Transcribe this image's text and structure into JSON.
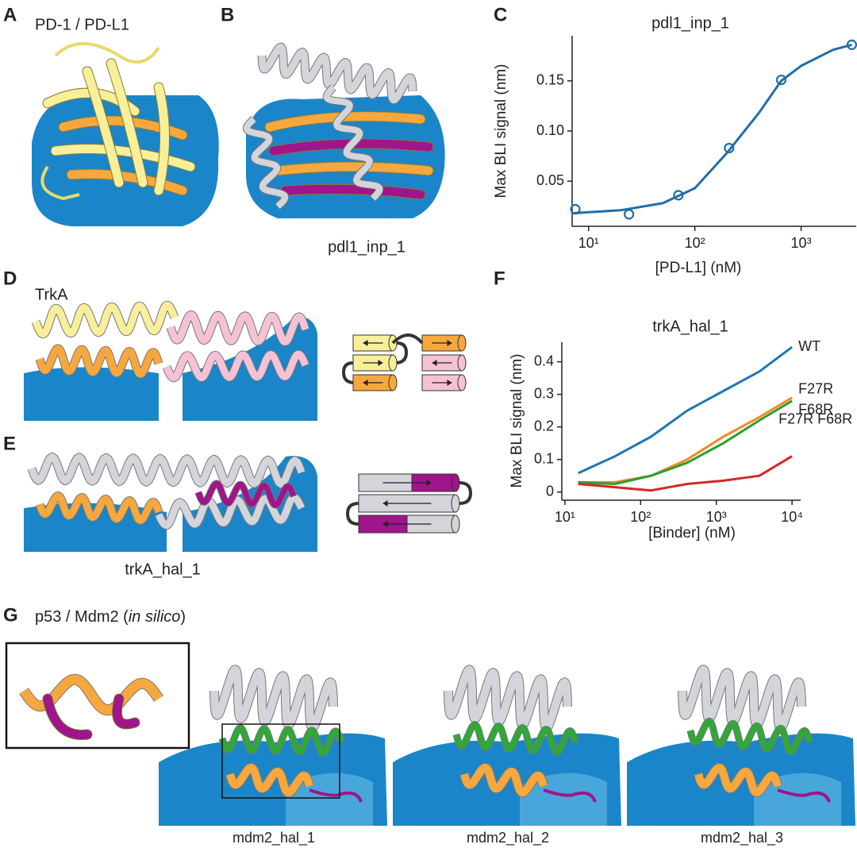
{
  "panels": [
    {
      "letter": "A",
      "title": "PD-1 / PD-L1"
    },
    {
      "letter": "B",
      "caption": "pdl1_inp_1"
    },
    {
      "letter": "C"
    },
    {
      "letter": "D",
      "title": "TrkA"
    },
    {
      "letter": "E",
      "caption": "trkA_hal_1"
    },
    {
      "letter": "F"
    },
    {
      "letter": "G",
      "title": "p53 / Mdm2 (",
      "title_italic": "in silico",
      "title_end": ")",
      "captions": [
        "mdm2_hal_1",
        "mdm2_hal_2",
        "mdm2_hal_3"
      ]
    }
  ],
  "chart_data": [
    {
      "type": "line",
      "title": "pdl1_inp_1",
      "x_label": "[PD-L1] (nM)",
      "y_label": "Max BLI signal (nm)",
      "xscale": "log",
      "xlim": [
        7,
        3300
      ],
      "ylim": [
        0.005,
        0.195
      ],
      "xticks": [
        {
          "value": 10,
          "label": "10¹"
        },
        {
          "value": 100,
          "label": "10²"
        },
        {
          "value": 1000,
          "label": "10³"
        }
      ],
      "yticks": [
        0.05,
        {
          "value": 0.1,
          "label": "0.10"
        },
        0.15
      ],
      "series": [
        {
          "style": "markers",
          "color": "#1f6fa8",
          "x": [
            7.5,
            24,
            70,
            210,
            650,
            3000
          ],
          "values": [
            0.022,
            0.017,
            0.036,
            0.083,
            0.151,
            0.186
          ]
        },
        {
          "style": "line",
          "color": "#1f6fa8",
          "x": [
            7,
            10,
            20,
            50,
            100,
            200,
            400,
            650,
            1000,
            2000,
            3000
          ],
          "values": [
            0.018,
            0.019,
            0.021,
            0.028,
            0.043,
            0.078,
            0.118,
            0.15,
            0.165,
            0.181,
            0.186
          ]
        }
      ]
    },
    {
      "type": "line",
      "title": "trkA_hal_1",
      "x_label": "[Binder] (nM)",
      "y_label": "Max BLI signal (nm)",
      "xscale": "log",
      "xlim": [
        9.1,
        13000
      ],
      "ylim": [
        -0.025,
        0.46
      ],
      "xticks": [
        {
          "value": 10,
          "label": "10¹"
        },
        {
          "value": 100,
          "label": "10²"
        },
        {
          "value": 1000,
          "label": "10³"
        },
        {
          "value": 10000,
          "label": "10⁴"
        }
      ],
      "yticks": [
        0,
        0.1,
        0.2,
        0.3,
        0.4
      ],
      "series": [
        {
          "name": "WT",
          "style": "line",
          "color": "#1f77b4",
          "x": [
            15,
            46,
            137,
            412,
            1235,
            3700,
            10000
          ],
          "values": [
            0.058,
            0.11,
            0.17,
            0.25,
            0.31,
            0.37,
            0.445
          ]
        },
        {
          "name": "F27R",
          "style": "line",
          "color": "#f5872a",
          "x": [
            15,
            46,
            137,
            412,
            1235,
            3700,
            10000
          ],
          "values": [
            0.03,
            0.03,
            0.05,
            0.1,
            0.17,
            0.23,
            0.29
          ]
        },
        {
          "name": "F68R",
          "style": "line",
          "color": "#2ca02c",
          "x": [
            15,
            46,
            137,
            412,
            1235,
            3700,
            10000
          ],
          "values": [
            0.03,
            0.025,
            0.05,
            0.09,
            0.15,
            0.22,
            0.28
          ]
        },
        {
          "name": "F27R F68R",
          "style": "line",
          "color": "#d62728",
          "x": [
            15,
            46,
            137,
            412,
            1235,
            3700,
            10000
          ],
          "values": [
            0.025,
            0.015,
            0.005,
            0.025,
            0.035,
            0.05,
            0.11
          ]
        }
      ]
    }
  ]
}
